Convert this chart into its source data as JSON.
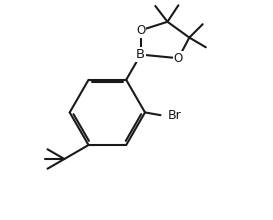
{
  "bg_color": "#ffffff",
  "line_color": "#1a1a1a",
  "line_width": 1.5,
  "font_size": 8.5,
  "figsize": [
    2.73,
    2.2
  ],
  "dpi": 100,
  "xlim": [
    -0.5,
    8.5
  ],
  "ylim": [
    -1.0,
    8.0
  ]
}
